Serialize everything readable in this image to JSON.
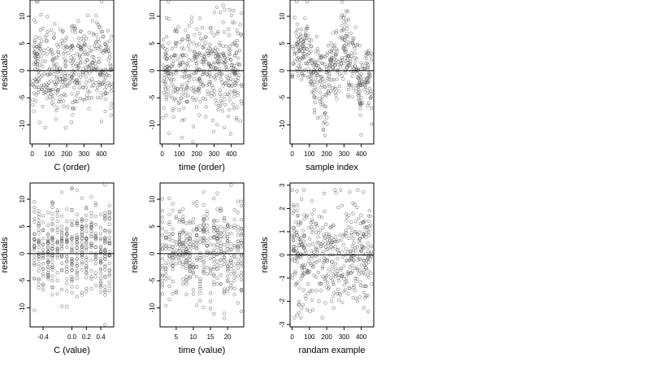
{
  "chart_data": [
    {
      "type": "scatter",
      "xlabel": "C (order)",
      "ylabel": "residuals",
      "xticks": [
        "0",
        "100",
        "200",
        "300",
        "400"
      ],
      "xtick_values": [
        0,
        100,
        200,
        300,
        400
      ],
      "yticks": [
        "-10",
        "-5",
        "0",
        "5",
        "10"
      ],
      "ytick_values": [
        -10,
        -5,
        0,
        5,
        10
      ],
      "xlim": [
        -12,
        472
      ],
      "ylim": [
        -13.5,
        13
      ],
      "zero_line": true,
      "n_points": 460,
      "style": "uniform",
      "seed": 11
    },
    {
      "type": "scatter",
      "xlabel": "time (order)",
      "ylabel": "residuals",
      "xticks": [
        "0",
        "100",
        "200",
        "300",
        "400"
      ],
      "xtick_values": [
        0,
        100,
        200,
        300,
        400
      ],
      "yticks": [
        "-10",
        "-5",
        "0",
        "5",
        "10"
      ],
      "ytick_values": [
        -10,
        -5,
        0,
        5,
        10
      ],
      "xlim": [
        -12,
        472
      ],
      "ylim": [
        -13.5,
        13
      ],
      "zero_line": true,
      "n_points": 460,
      "style": "uniform",
      "seed": 23
    },
    {
      "type": "scatter",
      "xlabel": "sample index",
      "ylabel": "residuals",
      "xticks": [
        "0",
        "100",
        "200",
        "300",
        "400"
      ],
      "xtick_values": [
        0,
        100,
        200,
        300,
        400
      ],
      "yticks": [
        "-10",
        "-5",
        "0",
        "5",
        "10"
      ],
      "ytick_values": [
        -10,
        -5,
        0,
        5,
        10
      ],
      "xlim": [
        -12,
        472
      ],
      "ylim": [
        -13.5,
        13
      ],
      "zero_line": true,
      "n_points": 460,
      "style": "clustered",
      "seed": 37
    },
    {
      "type": "scatter",
      "xlabel": "C (value)",
      "ylabel": "residuals",
      "xticks": [
        "-0.4",
        "0.0",
        "0.2",
        "0.4"
      ],
      "xtick_values": [
        -0.4,
        0.0,
        0.2,
        0.4
      ],
      "yticks": [
        "-10",
        "-5",
        "0",
        "5",
        "10"
      ],
      "ytick_values": [
        -10,
        -5,
        0,
        5,
        10
      ],
      "xlim": [
        -0.58,
        0.58
      ],
      "ylim": [
        -13.5,
        13
      ],
      "zero_line": true,
      "n_points": 460,
      "style": "columns",
      "seed": 41,
      "columns": [
        -0.52,
        -0.46,
        -0.4,
        -0.33,
        -0.27,
        -0.2,
        -0.14,
        -0.07,
        0.0,
        0.07,
        0.14,
        0.2,
        0.27,
        0.33,
        0.4,
        0.46,
        0.52
      ]
    },
    {
      "type": "scatter",
      "xlabel": "time (value)",
      "ylabel": "residuals",
      "xticks": [
        "5",
        "10",
        "15",
        "20"
      ],
      "xtick_values": [
        5,
        10,
        15,
        20
      ],
      "yticks": [
        "-10",
        "-5",
        "0",
        "5",
        "10"
      ],
      "ytick_values": [
        -10,
        -5,
        0,
        5,
        10
      ],
      "xlim": [
        0.3,
        24.7
      ],
      "ylim": [
        -13.5,
        13
      ],
      "zero_line": true,
      "n_points": 460,
      "style": "columns",
      "seed": 53,
      "columns": [
        1,
        2,
        3,
        4,
        5,
        6,
        7,
        8,
        9,
        10,
        11,
        12,
        13,
        14,
        15,
        16,
        17,
        18,
        19,
        20,
        21,
        22,
        23,
        24
      ]
    },
    {
      "type": "scatter",
      "xlabel": "randam example",
      "ylabel": "residuals",
      "xticks": [
        "0",
        "100",
        "200",
        "300",
        "400"
      ],
      "xtick_values": [
        0,
        100,
        200,
        300,
        400
      ],
      "yticks": [
        "-3",
        "-2",
        "-1",
        "0",
        "1",
        "2",
        "3"
      ],
      "ytick_values": [
        -3,
        -2,
        -1,
        0,
        1,
        2,
        3
      ],
      "xlim": [
        -12,
        472
      ],
      "ylim": [
        -3.1,
        3.1
      ],
      "zero_line": true,
      "n_points": 460,
      "style": "normal",
      "seed": 67
    }
  ]
}
